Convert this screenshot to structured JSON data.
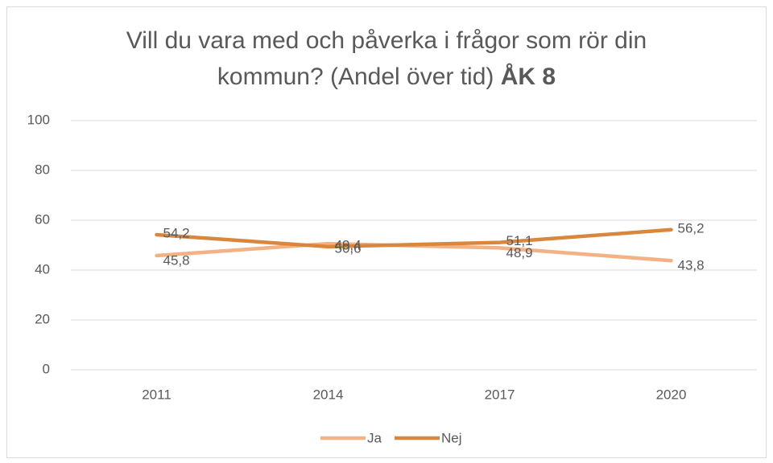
{
  "chart_data": {
    "type": "line",
    "title": "Vill du vara med och påverka i frågor som rör din kommun? (Andel över tid)",
    "title_bold": "ÅK 8",
    "categories": [
      "2011",
      "2014",
      "2017",
      "2020"
    ],
    "series": [
      {
        "name": "Ja",
        "color": "#f4b183",
        "values": [
          45.8,
          50.6,
          48.9,
          43.8
        ],
        "value_labels": [
          "45,8",
          "50,6",
          "48,9",
          "43,8"
        ]
      },
      {
        "name": "Nej",
        "color": "#d9873f",
        "values": [
          54.2,
          49.4,
          51.1,
          56.2
        ],
        "value_labels": [
          "54,2",
          "49,4",
          "51,1",
          "56,2"
        ]
      }
    ],
    "ylim": [
      0,
      100
    ],
    "yticks": [
      0,
      20,
      40,
      60,
      80,
      100
    ],
    "grid": true,
    "legend": "bottom"
  }
}
